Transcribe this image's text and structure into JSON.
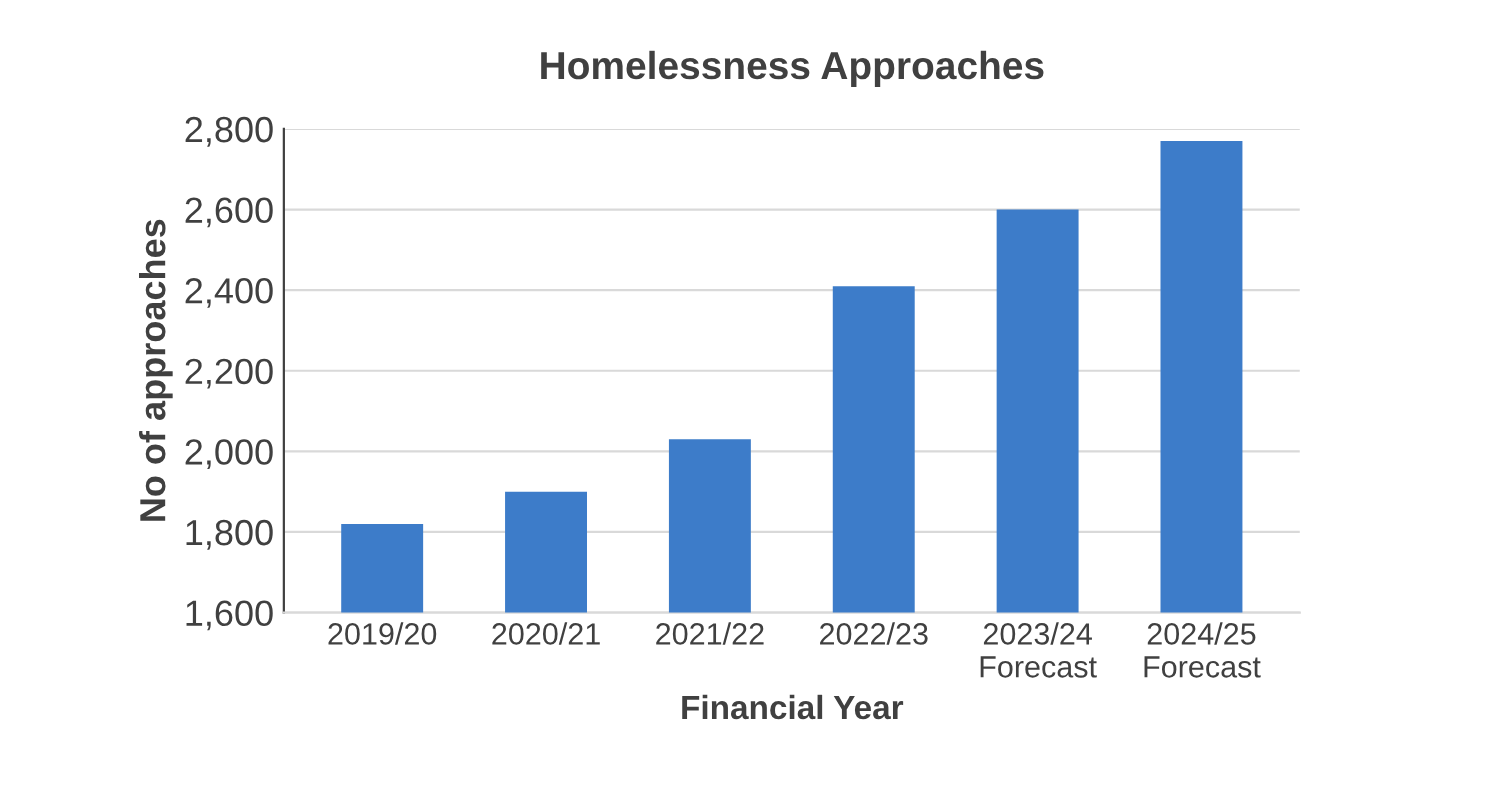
{
  "chart_data": {
    "type": "bar",
    "title": "Homelessness Approaches",
    "xlabel": "Financial Year",
    "ylabel": "No of approaches",
    "categories": [
      "2019/20",
      "2020/21",
      "2021/22",
      "2022/23",
      "2023/24\nForecast",
      "2024/25\nForecast"
    ],
    "values": [
      1820,
      1900,
      2030,
      2410,
      2600,
      2770
    ],
    "color": "#3d7cc9",
    "ylim": [
      1600,
      2800
    ],
    "yticks": [
      {
        "value": 1600,
        "label": "1,600"
      },
      {
        "value": 1800,
        "label": "1,800"
      },
      {
        "value": 2000,
        "label": "2,000"
      },
      {
        "value": 2200,
        "label": "2,200"
      },
      {
        "value": 2400,
        "label": "2,400"
      },
      {
        "value": 2600,
        "label": "2,600"
      },
      {
        "value": 2800,
        "label": "2,800"
      }
    ],
    "grid": "y"
  }
}
